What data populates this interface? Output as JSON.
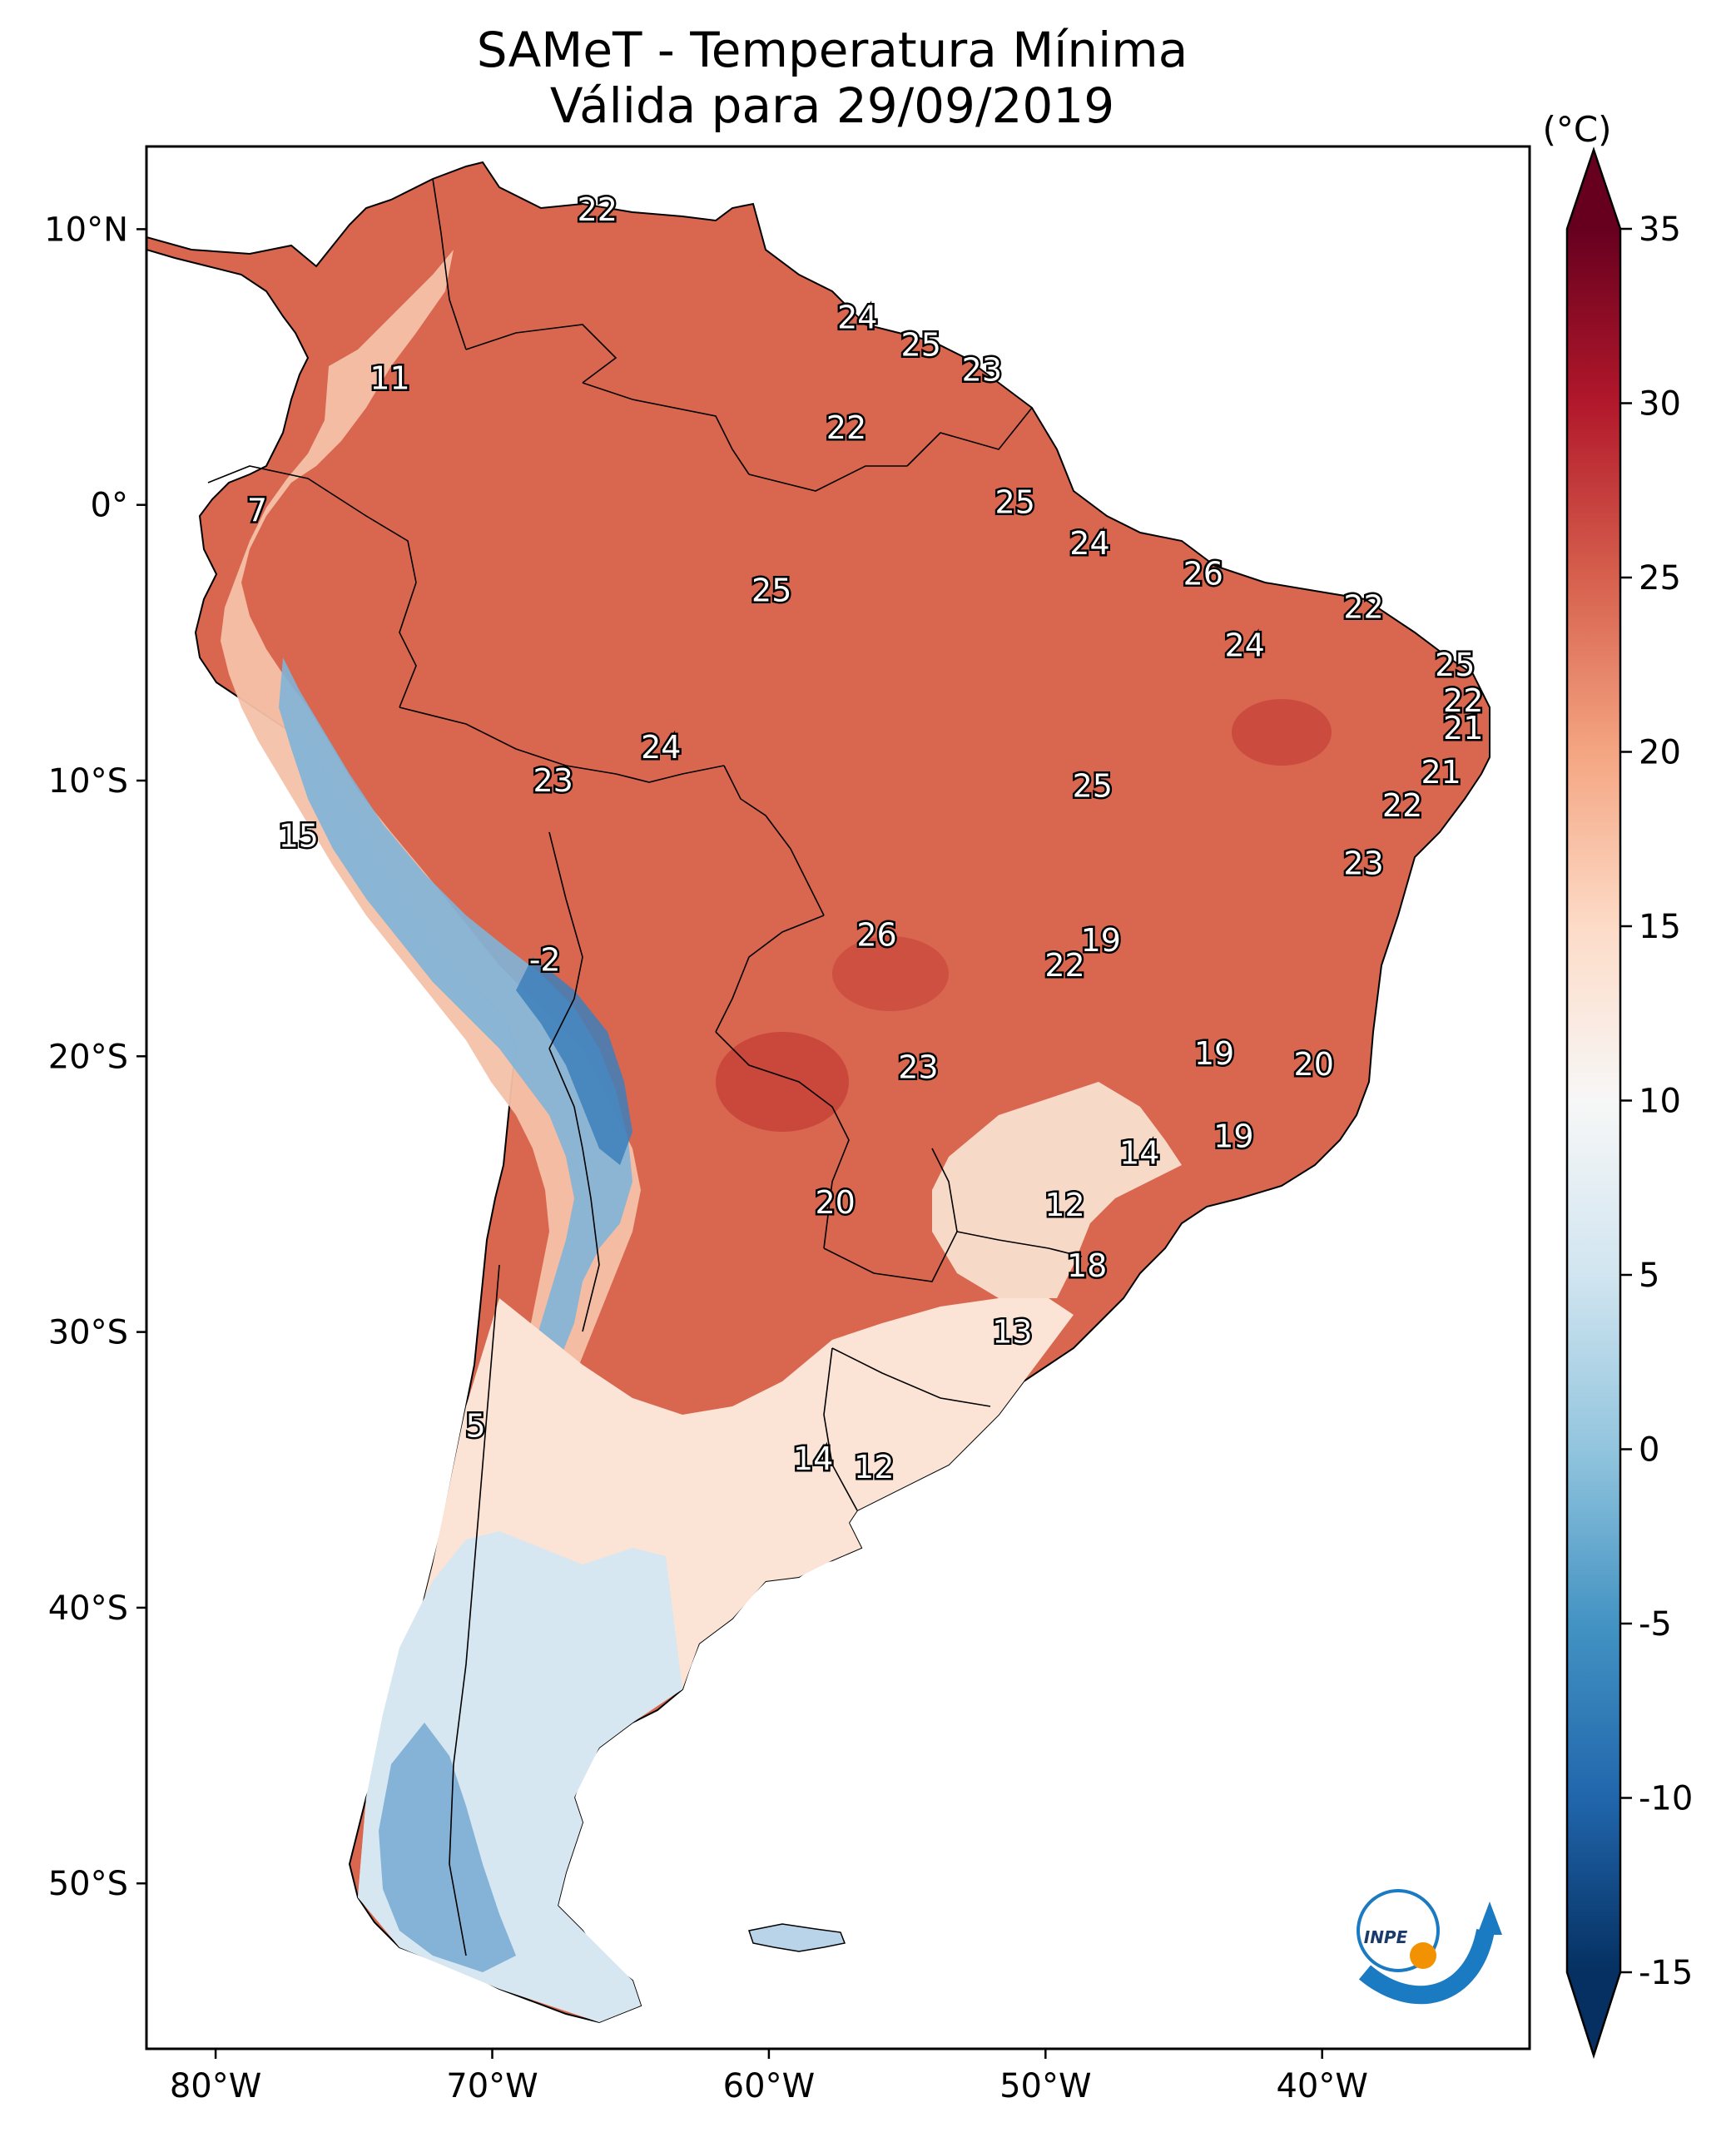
{
  "title": "SAMeT - Temperatura Mínima",
  "subtitle": "Válida para 29/09/2019",
  "colorbar": {
    "unit_label": "(°C)",
    "ticks": [
      "35",
      "30",
      "25",
      "20",
      "15",
      "10",
      "5",
      "0",
      "-5",
      "-10",
      "-15"
    ],
    "tick_values": [
      35,
      30,
      25,
      20,
      15,
      10,
      5,
      0,
      -5,
      -10,
      -15
    ],
    "min": -15,
    "max": 35,
    "colors": [
      "#053061",
      "#2166ac",
      "#4393c3",
      "#92c5de",
      "#d1e5f0",
      "#f7f7f7",
      "#fddbc7",
      "#f4a582",
      "#d6604d",
      "#b2182b",
      "#67001f"
    ]
  },
  "axes": {
    "lat_ticks": [
      "10°N",
      "0°",
      "10°S",
      "20°S",
      "30°S",
      "40°S",
      "50°S"
    ],
    "lat_values": [
      10,
      0,
      -10,
      -20,
      -30,
      -40,
      -50
    ],
    "lon_ticks": [
      "80°W",
      "70°W",
      "60°W",
      "50°W",
      "40°W"
    ],
    "lon_values": [
      -80,
      -70,
      -60,
      -50,
      -40
    ],
    "lon_range": [
      -82.5,
      -32.5
    ],
    "lat_range": [
      -56,
      13
    ]
  },
  "logo": {
    "text": "INPE",
    "colors": {
      "blue": "#1a7ac2",
      "orange": "#f39200"
    }
  },
  "chart_data": {
    "type": "heatmap",
    "title": "SAMeT - Temperatura Mínima",
    "subtitle": "Válida para 29/09/2019",
    "colorbar_label": "(°C)",
    "vmin": -15,
    "vmax": 35,
    "station_labels": [
      {
        "lon": -66.2,
        "lat": 10.7,
        "value": "22"
      },
      {
        "lon": -73.7,
        "lat": 4.6,
        "value": "11"
      },
      {
        "lon": -78.5,
        "lat": -0.2,
        "value": "7"
      },
      {
        "lon": -56.8,
        "lat": 6.8,
        "value": "24"
      },
      {
        "lon": -54.5,
        "lat": 5.8,
        "value": "25"
      },
      {
        "lon": -52.3,
        "lat": 4.9,
        "value": "23"
      },
      {
        "lon": -57.2,
        "lat": 2.8,
        "value": "22"
      },
      {
        "lon": -51.1,
        "lat": 0.1,
        "value": "25"
      },
      {
        "lon": -48.4,
        "lat": -1.4,
        "value": "24"
      },
      {
        "lon": -44.3,
        "lat": -2.5,
        "value": "26"
      },
      {
        "lon": -59.9,
        "lat": -3.1,
        "value": "25"
      },
      {
        "lon": -38.5,
        "lat": -3.7,
        "value": "22"
      },
      {
        "lon": -42.8,
        "lat": -5.1,
        "value": "24"
      },
      {
        "lon": -35.2,
        "lat": -5.8,
        "value": "25"
      },
      {
        "lon": -34.9,
        "lat": -7.1,
        "value": "22"
      },
      {
        "lon": -34.9,
        "lat": -8.1,
        "value": "21"
      },
      {
        "lon": -63.9,
        "lat": -8.8,
        "value": "24"
      },
      {
        "lon": -67.8,
        "lat": -10.0,
        "value": "23"
      },
      {
        "lon": -35.7,
        "lat": -9.7,
        "value": "21"
      },
      {
        "lon": -48.3,
        "lat": -10.2,
        "value": "25"
      },
      {
        "lon": -37.1,
        "lat": -10.9,
        "value": "22"
      },
      {
        "lon": -77.0,
        "lat": -12.0,
        "value": "15"
      },
      {
        "lon": -38.5,
        "lat": -13.0,
        "value": "23"
      },
      {
        "lon": -48.0,
        "lat": -15.8,
        "value": "19"
      },
      {
        "lon": -56.1,
        "lat": -15.6,
        "value": "26"
      },
      {
        "lon": -49.3,
        "lat": -16.7,
        "value": "22"
      },
      {
        "lon": -68.1,
        "lat": -16.5,
        "value": "-2"
      },
      {
        "lon": -43.9,
        "lat": -19.9,
        "value": "19"
      },
      {
        "lon": -40.3,
        "lat": -20.3,
        "value": "20"
      },
      {
        "lon": -54.6,
        "lat": -20.4,
        "value": "23"
      },
      {
        "lon": -46.6,
        "lat": -23.5,
        "value": "14"
      },
      {
        "lon": -43.2,
        "lat": -22.9,
        "value": "19"
      },
      {
        "lon": -57.6,
        "lat": -25.3,
        "value": "20"
      },
      {
        "lon": -49.3,
        "lat": -25.4,
        "value": "12"
      },
      {
        "lon": -48.5,
        "lat": -27.6,
        "value": "18"
      },
      {
        "lon": -51.2,
        "lat": -30.0,
        "value": "13"
      },
      {
        "lon": -70.6,
        "lat": -33.4,
        "value": "5"
      },
      {
        "lon": -58.4,
        "lat": -34.6,
        "value": "14"
      },
      {
        "lon": -56.2,
        "lat": -34.9,
        "value": "12"
      }
    ]
  }
}
